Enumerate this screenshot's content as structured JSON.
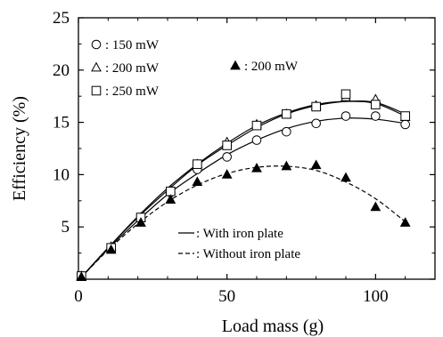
{
  "chart_data": {
    "type": "scatter",
    "xlabel": "Load mass (g)",
    "ylabel": "Efficiency (%)",
    "xlim": [
      0,
      120
    ],
    "ylim": [
      0,
      25
    ],
    "x_ticks": [
      0,
      50,
      100
    ],
    "x_tick_labels": [
      "0",
      "50",
      "100"
    ],
    "y_ticks": [
      0,
      5,
      10,
      15,
      20,
      25
    ],
    "y_tick_labels": [
      "",
      "5",
      "10",
      "15",
      "20",
      "25"
    ],
    "grid": false,
    "legend_position": "top-left",
    "series": [
      {
        "name": ": 150 mW",
        "marker": "circle-open",
        "x": [
          1,
          11,
          21,
          31,
          40,
          50,
          60,
          70,
          80,
          90,
          100,
          110
        ],
        "y": [
          0.3,
          3.0,
          5.8,
          8.3,
          10.5,
          11.7,
          13.3,
          14.1,
          14.9,
          15.6,
          15.6,
          14.8
        ]
      },
      {
        "name": ": 200 mW",
        "marker": "triangle-open",
        "x": [
          1,
          11,
          21,
          31,
          40,
          50,
          60,
          70,
          80,
          90,
          100,
          110
        ],
        "y": [
          0.3,
          3.1,
          5.9,
          8.5,
          11.0,
          13.1,
          14.8,
          15.8,
          16.6,
          17.4,
          17.2,
          15.5
        ]
      },
      {
        "name": ": 250 mW",
        "marker": "square-open",
        "x": [
          1,
          11,
          21,
          31,
          40,
          50,
          60,
          70,
          80,
          90,
          100,
          110
        ],
        "y": [
          0.3,
          3.0,
          5.9,
          8.4,
          11.0,
          12.8,
          14.7,
          15.8,
          16.5,
          17.7,
          16.7,
          15.6
        ]
      },
      {
        "name": ": 200 mW",
        "marker": "triangle-filled",
        "x": [
          1,
          11,
          21,
          31,
          40,
          50,
          60,
          70,
          80,
          90,
          100,
          110
        ],
        "y": [
          0.2,
          2.8,
          5.4,
          7.6,
          9.3,
          10.0,
          10.6,
          10.8,
          10.9,
          9.7,
          6.9,
          5.4
        ]
      }
    ],
    "fit_lines": [
      {
        "series": 0,
        "style": "solid",
        "x": [
          1,
          10,
          20,
          30,
          40,
          50,
          60,
          70,
          80,
          90,
          100,
          110
        ],
        "y": [
          0.2,
          2.9,
          5.6,
          8.1,
          10.1,
          11.9,
          13.3,
          14.4,
          15.1,
          15.4,
          15.3,
          14.9
        ]
      },
      {
        "series": 1,
        "style": "solid",
        "x": [
          1,
          10,
          20,
          30,
          40,
          50,
          60,
          70,
          80,
          90,
          100,
          110
        ],
        "y": [
          0.2,
          3.0,
          6.0,
          8.7,
          11.0,
          13.0,
          14.7,
          15.9,
          16.7,
          17.0,
          16.8,
          15.6
        ]
      },
      {
        "series": 2,
        "style": "solid",
        "x": [
          1,
          10,
          20,
          30,
          40,
          50,
          60,
          70,
          80,
          90,
          100,
          110
        ],
        "y": [
          0.2,
          3.0,
          5.9,
          8.5,
          10.9,
          12.8,
          14.5,
          15.8,
          16.6,
          17.0,
          16.9,
          15.8
        ]
      },
      {
        "series": 3,
        "style": "dashed",
        "x": [
          1,
          10,
          20,
          30,
          40,
          50,
          60,
          70,
          80,
          90,
          100,
          110
        ],
        "y": [
          0.2,
          2.8,
          5.3,
          7.4,
          9.0,
          10.1,
          10.7,
          10.8,
          10.4,
          9.3,
          7.7,
          5.5
        ]
      }
    ],
    "line_key": [
      {
        "style": "solid",
        "label": ": With iron plate"
      },
      {
        "style": "dashed",
        "label": ": Without iron plate"
      }
    ]
  }
}
